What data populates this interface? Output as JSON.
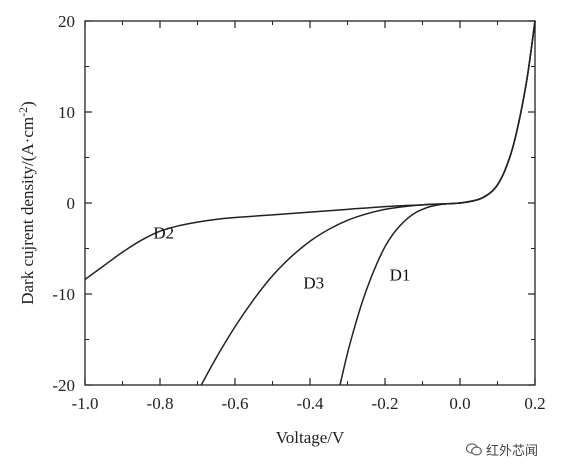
{
  "chart_data": {
    "type": "line",
    "xlabel": "Voltage/V",
    "ylabel_main": "Dark cujrent density/(A·cm",
    "ylabel_sup": "-2",
    "ylabel_close": ")",
    "xlim": [
      -1.0,
      0.2
    ],
    "ylim": [
      -20,
      20
    ],
    "x_ticks": [
      "-1.0",
      "-0.8",
      "-0.6",
      "-0.4",
      "-0.2",
      "0.0",
      "0.2"
    ],
    "y_ticks": [
      "20",
      "10",
      "0",
      "-10",
      "-20"
    ],
    "grid": false,
    "series": [
      {
        "name": "D2",
        "x": [
          -1.0,
          -0.95,
          -0.9,
          -0.85,
          -0.8,
          -0.75,
          -0.7,
          -0.65,
          -0.6,
          -0.5,
          -0.4,
          -0.3,
          -0.2,
          -0.1,
          0.0,
          0.05,
          0.08,
          0.1,
          0.12,
          0.14,
          0.16,
          0.18,
          0.2
        ],
        "y": [
          -8.4,
          -6.9,
          -5.4,
          -4.1,
          -3.1,
          -2.5,
          -2.1,
          -1.8,
          -1.6,
          -1.3,
          -1.0,
          -0.7,
          -0.4,
          -0.2,
          0.0,
          0.4,
          1.1,
          2.0,
          3.6,
          6.0,
          9.5,
          14.0,
          20.0
        ]
      },
      {
        "name": "D3",
        "x": [
          -0.69,
          -0.65,
          -0.6,
          -0.55,
          -0.5,
          -0.45,
          -0.4,
          -0.35,
          -0.3,
          -0.25,
          -0.2,
          -0.15,
          -0.1,
          -0.05,
          0.0,
          0.05,
          0.08,
          0.1,
          0.12,
          0.14,
          0.16,
          0.18,
          0.2
        ],
        "y": [
          -20.0,
          -17.0,
          -13.6,
          -10.6,
          -8.0,
          -5.9,
          -4.2,
          -2.9,
          -1.9,
          -1.2,
          -0.7,
          -0.4,
          -0.2,
          -0.1,
          0.0,
          0.4,
          1.1,
          2.0,
          3.6,
          6.0,
          9.5,
          14.0,
          20.0
        ]
      },
      {
        "name": "D1",
        "x": [
          -0.32,
          -0.3,
          -0.28,
          -0.26,
          -0.24,
          -0.22,
          -0.2,
          -0.18,
          -0.16,
          -0.14,
          -0.12,
          -0.1,
          -0.08,
          -0.05,
          -0.02,
          0.0,
          0.05,
          0.08,
          0.1,
          0.12,
          0.14,
          0.16,
          0.18,
          0.2
        ],
        "y": [
          -20.0,
          -16.5,
          -13.5,
          -10.8,
          -8.5,
          -6.5,
          -4.8,
          -3.5,
          -2.5,
          -1.7,
          -1.1,
          -0.7,
          -0.4,
          -0.15,
          -0.05,
          0.0,
          0.4,
          1.1,
          2.0,
          3.6,
          6.0,
          9.5,
          14.0,
          20.0
        ]
      }
    ],
    "annotations": [
      "D2",
      "D3",
      "D1"
    ]
  },
  "watermark": {
    "text": "红外芯闻"
  }
}
